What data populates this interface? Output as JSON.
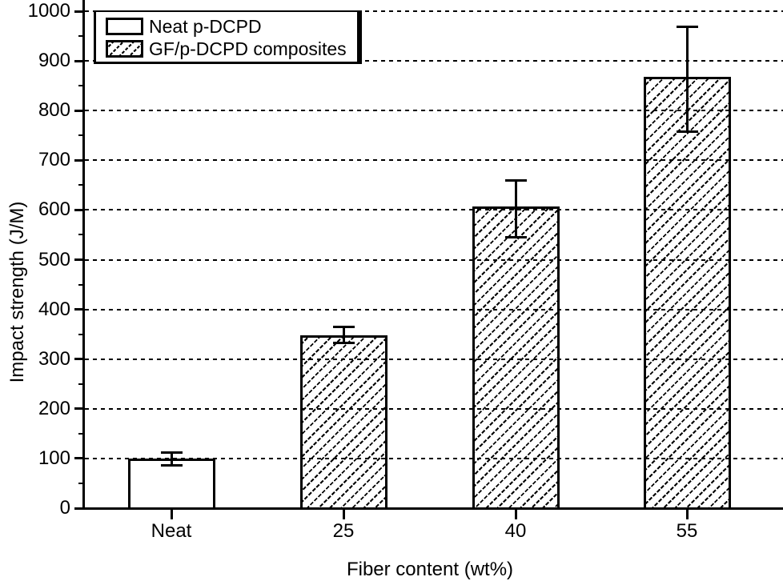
{
  "figure": {
    "background_color": "#ffffff",
    "ink_color": "#000000"
  },
  "chart_data": {
    "type": "bar",
    "title": "",
    "xlabel": "Fiber content (wt%)",
    "ylabel": "Impact strength (J/M)",
    "categories": [
      "Neat",
      "25",
      "40",
      "55"
    ],
    "values": [
      100,
      348,
      607,
      868
    ],
    "error_high": [
      113,
      365,
      660,
      970
    ],
    "error_low": [
      86,
      332,
      545,
      757
    ],
    "bar_styles": [
      "solid-white",
      "hatched",
      "hatched",
      "hatched"
    ],
    "ylim": [
      0,
      1000
    ],
    "ytick_step": 100,
    "yminor_step": 50,
    "ytick_labels": [
      "0",
      "100",
      "200",
      "300",
      "400",
      "500",
      "600",
      "700",
      "800",
      "900",
      "1000"
    ],
    "grid": "horizontal dashed lines at every 100",
    "legend": {
      "position": "top-left",
      "entries": [
        {
          "label": "Neat p-DCPD",
          "swatch": "solid-white"
        },
        {
          "label": "GF/p-DCPD composites",
          "swatch": "hatched"
        }
      ]
    }
  }
}
